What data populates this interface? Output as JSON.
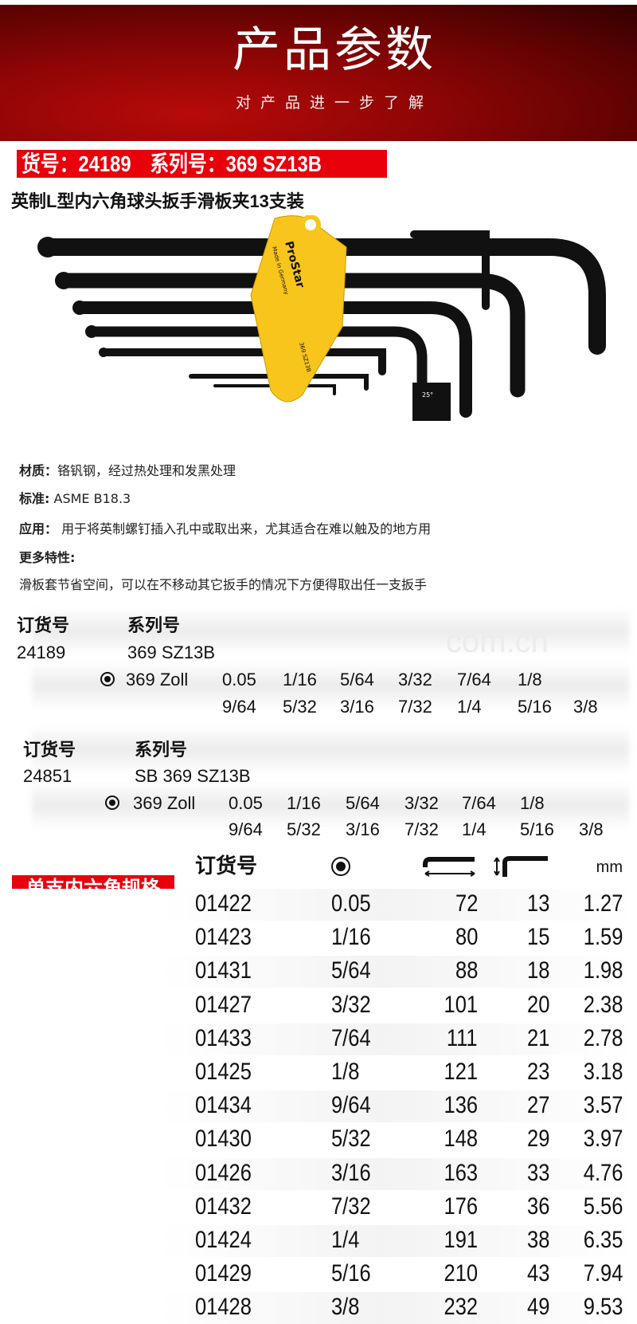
{
  "banner": {
    "title": "产品参数",
    "subtitle": "对产品进一步了解"
  },
  "product_label": "货号：24189　系列号：369 SZ13B",
  "product_title": "英制L型内六角球头扳手滑板夹13支装",
  "image": {
    "holder_text": [
      "ProStar",
      "Made in Germany",
      "369 SZ13B"
    ],
    "angle_badge": "25°"
  },
  "specs": [
    {
      "label": "材质：",
      "value": "铬钒钢，经过热处理和发黑处理"
    },
    {
      "label": "标准:",
      "value": "ASME B18.3"
    },
    {
      "label": "应用：",
      "value": "用于将英制螺钉插入孔中或取出来，尤其适合在难以触及的地方用"
    },
    {
      "label": "更多特性:",
      "value": ""
    },
    {
      "label": "",
      "value": "滑板套节省空间，可以在不移动其它扳手的情况下方便得取出任一支扳手"
    }
  ],
  "watermark": "com.cn",
  "orders": [
    {
      "order_header": "订货号",
      "series_header": "系列号",
      "order_no": "24189",
      "series": "369 SZ13B",
      "type": "369 Zoll",
      "sizes_row1": [
        "0.05",
        "1/16",
        "5/64",
        "3/32",
        "7/64",
        "1/8"
      ],
      "sizes_row2": [
        "9/64",
        "5/32",
        "3/16",
        "7/32",
        "1/4",
        "5/16",
        "3/8"
      ]
    },
    {
      "order_header": "订货号",
      "series_header": "系列号",
      "order_no": "24851",
      "series": "SB 369 SZ13B",
      "type": "369 Zoll",
      "sizes_row1": [
        "0.05",
        "1/16",
        "5/64",
        "3/32",
        "7/64",
        "1/8"
      ],
      "sizes_row2": [
        "9/64",
        "5/32",
        "3/16",
        "7/32",
        "1/4",
        "5/16",
        "3/8"
      ]
    }
  ],
  "single_label": "单支内六角规格",
  "table": {
    "headers": {
      "order": "订货号",
      "hex_icon": "hex-ball-icon",
      "long_icon": "long-arm-length-icon",
      "short_icon": "short-arm-length-icon",
      "unit": "mm"
    },
    "rows": [
      [
        "01422",
        "0.05",
        "72",
        "13",
        "1.27"
      ],
      [
        "01423",
        "1/16",
        "80",
        "15",
        "1.59"
      ],
      [
        "01431",
        "5/64",
        "88",
        "18",
        "1.98"
      ],
      [
        "01427",
        "3/32",
        "101",
        "20",
        "2.38"
      ],
      [
        "01433",
        "7/64",
        "111",
        "21",
        "2.78"
      ],
      [
        "01425",
        "1/8",
        "121",
        "23",
        "3.18"
      ],
      [
        "01434",
        "9/64",
        "136",
        "27",
        "3.57"
      ],
      [
        "01430",
        "5/32",
        "148",
        "29",
        "3.97"
      ],
      [
        "01426",
        "3/16",
        "163",
        "33",
        "4.76"
      ],
      [
        "01432",
        "7/32",
        "176",
        "36",
        "5.56"
      ],
      [
        "01424",
        "1/4",
        "191",
        "38",
        "6.35"
      ],
      [
        "01429",
        "5/16",
        "210",
        "43",
        "7.94"
      ],
      [
        "01428",
        "3/8",
        "232",
        "49",
        "9.53"
      ]
    ]
  },
  "colors": {
    "accent_red": "#e8000b",
    "banner_dark": "#5a0202",
    "holder_yellow": "#f7c51c"
  }
}
